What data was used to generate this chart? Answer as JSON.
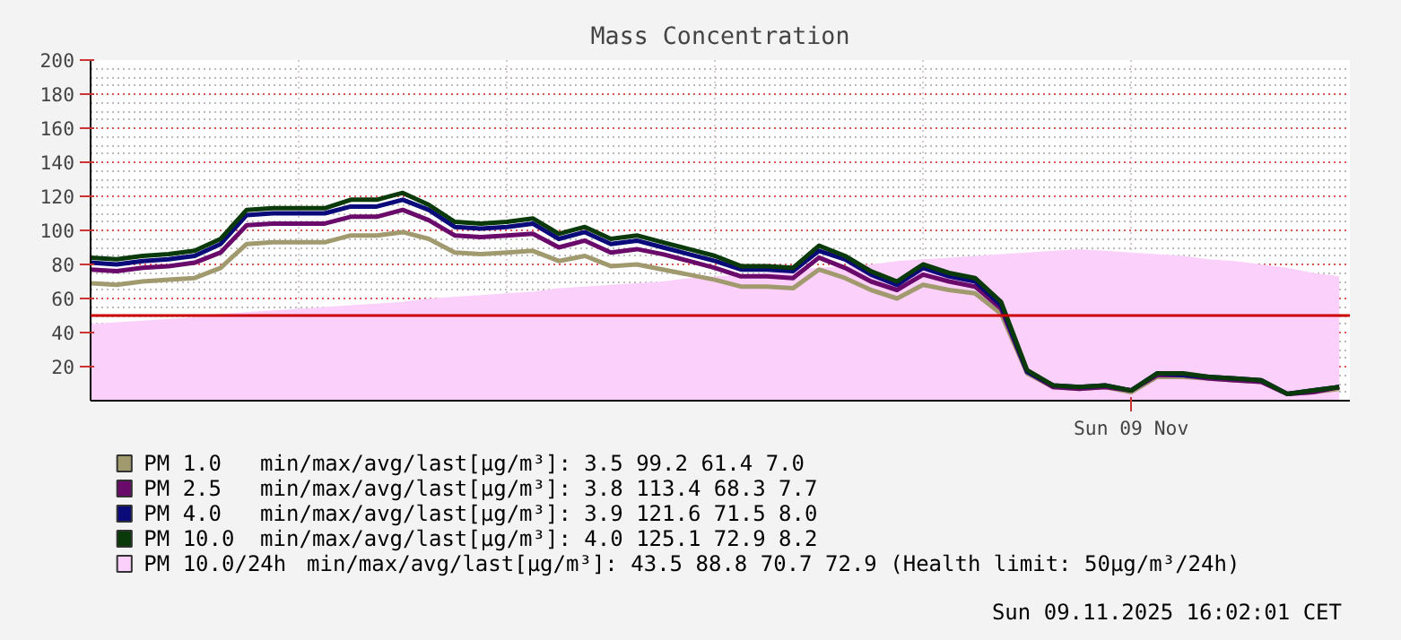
{
  "chart_data": {
    "type": "line",
    "title": "Mass Concentration",
    "categories": [
      null,
      null,
      null,
      null,
      null,
      null,
      null,
      null,
      null,
      null,
      null,
      null,
      null,
      null,
      null,
      null,
      null,
      null,
      null,
      null,
      null,
      null,
      null,
      null,
      null,
      null,
      null,
      null,
      null,
      null,
      null,
      null,
      null,
      null,
      null,
      null,
      null,
      null,
      null,
      null,
      "Sun 09 Nov",
      null,
      null,
      null,
      null,
      null,
      null,
      null,
      null
    ],
    "series": [
      {
        "name": "PM 10.0/24h",
        "type": "area",
        "color": "#fbd0fb",
        "values": [
          45,
          46,
          47,
          48,
          49,
          51,
          52,
          53,
          54,
          55,
          56,
          57,
          58,
          60,
          61,
          62,
          63,
          64,
          66,
          67,
          68,
          69,
          70,
          72,
          73,
          74,
          75,
          77,
          78,
          79,
          80,
          82,
          83,
          84,
          85,
          86,
          87,
          88,
          89,
          88,
          87,
          86,
          85,
          83,
          82,
          80,
          78,
          75,
          73
        ]
      },
      {
        "name": "PM 1.0",
        "color": "#a09a6e",
        "values": [
          69,
          68,
          70,
          71,
          72,
          78,
          92,
          93,
          93,
          93,
          97,
          97,
          99,
          95,
          87,
          86,
          87,
          88,
          82,
          85,
          79,
          80,
          77,
          74,
          71,
          67,
          67,
          66,
          77,
          72,
          65,
          60,
          68,
          65,
          63,
          51,
          16,
          8,
          7,
          8,
          5,
          14,
          14,
          13,
          12,
          11,
          4,
          5,
          7
        ]
      },
      {
        "name": "PM 2.5",
        "color": "#6a0a6a",
        "values": [
          77,
          76,
          78,
          79,
          81,
          87,
          103,
          104,
          104,
          104,
          108,
          108,
          112,
          106,
          97,
          96,
          97,
          98,
          90,
          94,
          87,
          89,
          86,
          82,
          78,
          73,
          73,
          72,
          84,
          78,
          70,
          65,
          74,
          70,
          67,
          54,
          17,
          8,
          7,
          8,
          6,
          15,
          15,
          13,
          12,
          11,
          4,
          5,
          8
        ]
      },
      {
        "name": "PM 4.0",
        "color": "#0a0a7a",
        "values": [
          81,
          80,
          82,
          83,
          85,
          92,
          109,
          110,
          110,
          110,
          114,
          114,
          118,
          112,
          102,
          101,
          102,
          104,
          95,
          99,
          92,
          94,
          90,
          86,
          82,
          77,
          77,
          76,
          88,
          83,
          74,
          68,
          78,
          73,
          70,
          56,
          17,
          9,
          8,
          9,
          6,
          16,
          15,
          14,
          13,
          12,
          4,
          6,
          8
        ]
      },
      {
        "name": "PM 10.0",
        "color": "#0a3a0a",
        "values": [
          84,
          83,
          85,
          86,
          88,
          95,
          112,
          113,
          113,
          113,
          118,
          118,
          122,
          115,
          105,
          104,
          105,
          107,
          98,
          102,
          95,
          97,
          93,
          89,
          85,
          79,
          79,
          78,
          91,
          85,
          76,
          70,
          80,
          75,
          72,
          58,
          18,
          9,
          8,
          9,
          6,
          16,
          16,
          14,
          13,
          12,
          4,
          6,
          8
        ]
      }
    ],
    "annotations": [
      "min/max/avg/last[µg/m³]:         43.5   88.8   70.7   72.9    (Health limit: 50µg/m³/24h)",
      "min/max/avg/last[µg/m³]:          3.5   99.2   61.4   7.0",
      "min/max/avg/last[µg/m³]:          3.8  113.4   68.3   7.7",
      "min/max/avg/last[µg/m³]:          3.9  121.6   71.5   8.0",
      "min/max/avg/last[µg/m³]:          4.0  125.1   72.9   8.2",
      "Sun 09.11.2025 16:02:01 CET"
    ],
    "ref_lines": [
      {
        "axis": "y",
        "value": 50,
        "label": null,
        "color": "#cc0000"
      }
    ],
    "ylim": [
      0,
      200
    ],
    "yticks": [
      20,
      40,
      60,
      80,
      100,
      120,
      140,
      160,
      180,
      200
    ],
    "grid": true,
    "legend": "bottom"
  }
}
